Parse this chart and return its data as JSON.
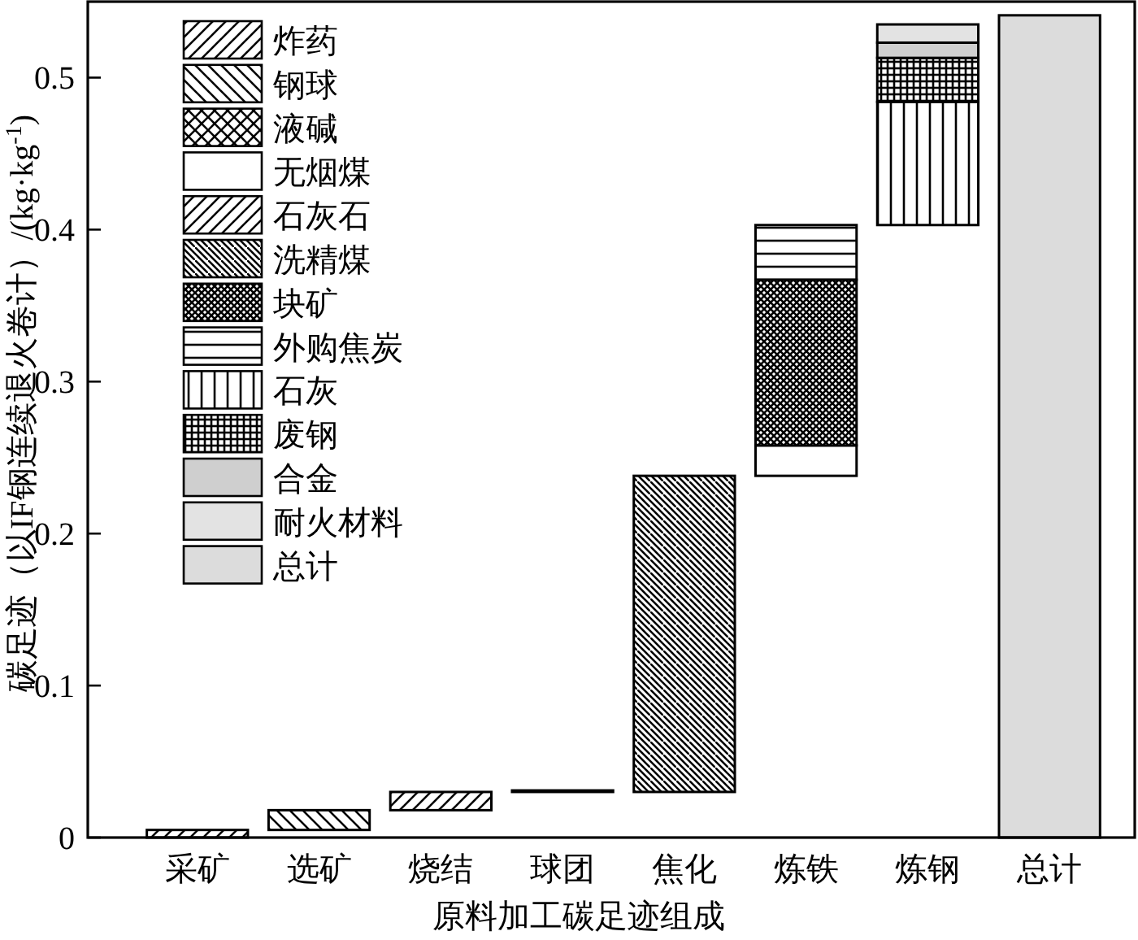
{
  "chart_data": {
    "type": "bar",
    "xlabel": "原料加工碳足迹组成",
    "ylabel": "碳足迹（以IF钢连续退火卷计）/(kg·kg$^{-1}$)",
    "categories": [
      "采矿",
      "选矿",
      "烧结",
      "球团",
      "焦化",
      "炼铁",
      "炼钢",
      "总计"
    ],
    "ylim": [
      0,
      0.55
    ],
    "yticks": [
      0,
      0.1,
      0.2,
      0.3,
      0.4,
      0.5
    ],
    "legend": "top left",
    "series": [
      {
        "name": "炸药",
        "color": "#000000",
        "values": [
          0.005,
          null,
          null,
          null,
          null,
          null,
          null,
          null
        ],
        "base": [
          0,
          null,
          null,
          null,
          null,
          null,
          null,
          null
        ]
      },
      {
        "name": "钢球",
        "color": "#000000",
        "values": [
          null,
          0.013,
          null,
          null,
          null,
          null,
          null,
          null
        ],
        "base": [
          null,
          0.005,
          null,
          null,
          null,
          null,
          null,
          null
        ]
      },
      {
        "name": "液碱",
        "color": "#000000",
        "values": [
          null,
          null,
          null,
          null,
          null,
          null,
          null,
          null
        ]
      },
      {
        "name": "无烟煤",
        "color": "#ffffff",
        "values": [
          null,
          null,
          null,
          0.001,
          null,
          0.02,
          null,
          null
        ],
        "base": [
          null,
          null,
          null,
          0.03,
          null,
          0.238,
          null,
          null
        ]
      },
      {
        "name": "石灰石",
        "color": "#000000",
        "values": [
          null,
          null,
          0.012,
          null,
          null,
          null,
          null,
          null
        ],
        "base": [
          null,
          null,
          0.018,
          null,
          null,
          null,
          null,
          null
        ]
      },
      {
        "name": "洗精煤",
        "color": "#000000",
        "values": [
          null,
          null,
          null,
          null,
          0.208,
          null,
          null,
          null
        ],
        "base": [
          null,
          null,
          null,
          null,
          0.03,
          null,
          null,
          null
        ]
      },
      {
        "name": "块矿",
        "color": "#000000",
        "values": [
          null,
          null,
          null,
          null,
          null,
          0.109,
          null,
          null
        ],
        "base": [
          null,
          null,
          null,
          null,
          null,
          0.258,
          null,
          null
        ]
      },
      {
        "name": "外购焦炭",
        "color": "#000000",
        "values": [
          null,
          null,
          null,
          null,
          null,
          0.036,
          null,
          null
        ],
        "base": [
          null,
          null,
          null,
          null,
          null,
          0.367,
          null,
          null
        ]
      },
      {
        "name": "石灰",
        "color": "#000000",
        "values": [
          null,
          null,
          null,
          null,
          null,
          null,
          0.081,
          null
        ],
        "base": [
          null,
          null,
          null,
          null,
          null,
          null,
          0.403,
          null
        ]
      },
      {
        "name": "废钢",
        "color": "#000000",
        "values": [
          null,
          null,
          null,
          null,
          null,
          null,
          0.029,
          null
        ],
        "base": [
          null,
          null,
          null,
          null,
          null,
          null,
          0.484,
          null
        ]
      },
      {
        "name": "合金",
        "color": "#cfcfcf",
        "values": [
          null,
          null,
          null,
          null,
          null,
          null,
          0.01,
          null
        ],
        "base": [
          null,
          null,
          null,
          null,
          null,
          null,
          0.513,
          null
        ]
      },
      {
        "name": "耐火材料",
        "color": "#e3e3e3",
        "values": [
          null,
          null,
          null,
          null,
          null,
          null,
          0.012,
          null
        ],
        "base": [
          null,
          null,
          null,
          null,
          null,
          null,
          0.523,
          null
        ]
      },
      {
        "name": "总计",
        "color": "#dcdcdc",
        "values": [
          null,
          null,
          null,
          null,
          null,
          null,
          null,
          0.541
        ],
        "base": [
          null,
          null,
          null,
          null,
          null,
          null,
          null,
          0
        ]
      }
    ]
  }
}
